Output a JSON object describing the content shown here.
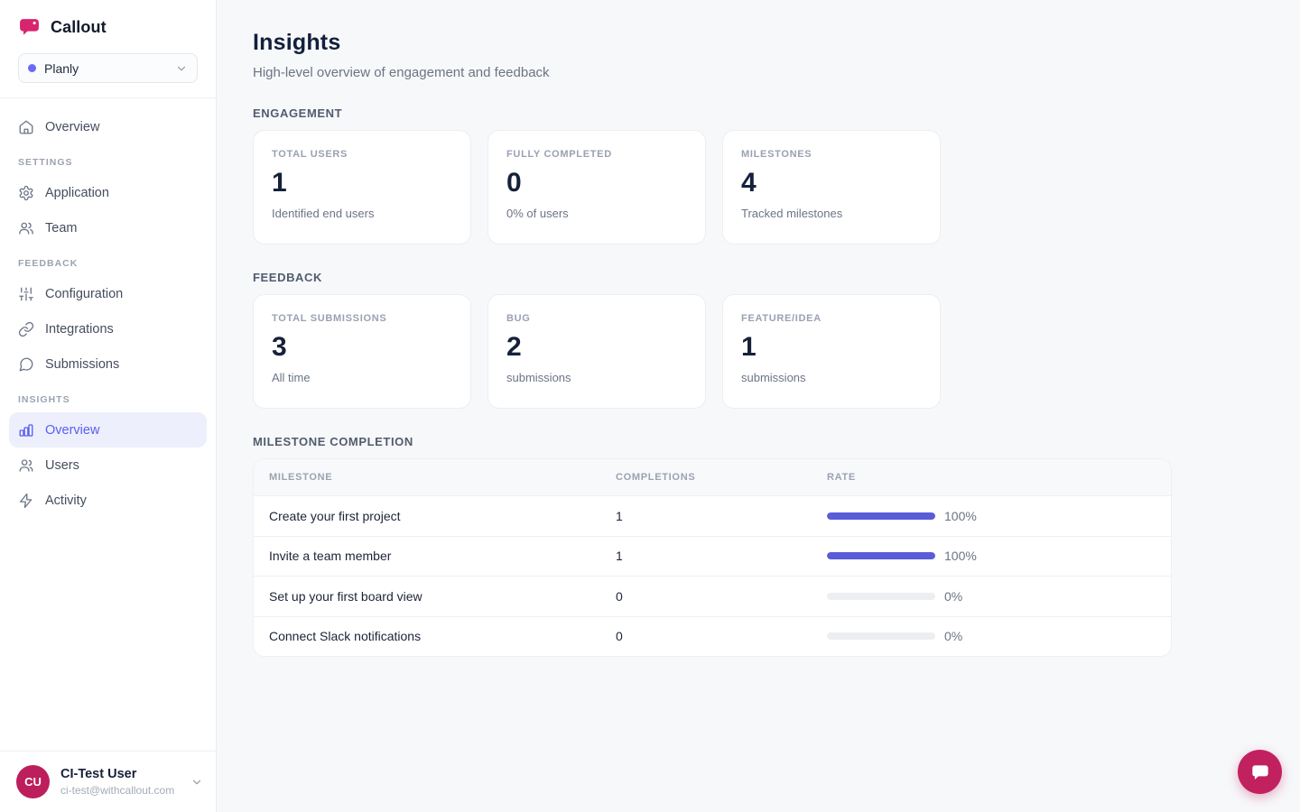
{
  "brand": {
    "name": "Callout",
    "logo_color": "#d6246e",
    "accent_color": "#6366f1",
    "crimson_color": "#bd1e5c"
  },
  "sidebar": {
    "project_selector": {
      "name": "Planly"
    },
    "groups": [
      {
        "heading": "",
        "items": [
          {
            "label": "Overview",
            "icon": "home-icon",
            "active": false
          }
        ]
      },
      {
        "heading": "SETTINGS",
        "items": [
          {
            "label": "Application",
            "icon": "gear-icon",
            "active": false
          },
          {
            "label": "Team",
            "icon": "team-icon",
            "active": false
          }
        ]
      },
      {
        "heading": "FEEDBACK",
        "items": [
          {
            "label": "Configuration",
            "icon": "sliders-icon",
            "active": false
          },
          {
            "label": "Integrations",
            "icon": "link-icon",
            "active": false
          },
          {
            "label": "Submissions",
            "icon": "speech-bubble-icon",
            "active": false
          }
        ]
      },
      {
        "heading": "INSIGHTS",
        "items": [
          {
            "label": "Overview",
            "icon": "bar-chart-icon",
            "active": true
          },
          {
            "label": "Users",
            "icon": "users-icon",
            "active": false
          },
          {
            "label": "Activity",
            "icon": "lightning-icon",
            "active": false
          }
        ]
      }
    ],
    "user": {
      "initials": "CU",
      "name": "CI-Test User",
      "email": "ci-test@withcallout.com"
    }
  },
  "page": {
    "title": "Insights",
    "subtitle": "High-level overview of engagement and feedback"
  },
  "engagement": {
    "heading": "ENGAGEMENT",
    "cards": [
      {
        "label": "TOTAL USERS",
        "value": "1",
        "sublabel": "Identified end users"
      },
      {
        "label": "FULLY COMPLETED",
        "value": "0",
        "sublabel": "0% of users"
      },
      {
        "label": "MILESTONES",
        "value": "4",
        "sublabel": "Tracked milestones"
      }
    ]
  },
  "feedback": {
    "heading": "FEEDBACK",
    "cards": [
      {
        "label": "TOTAL SUBMISSIONS",
        "value": "3",
        "sublabel": "All time"
      },
      {
        "label": "BUG",
        "value": "2",
        "sublabel": "submissions"
      },
      {
        "label": "FEATURE/IDEA",
        "value": "1",
        "sublabel": "submissions"
      }
    ]
  },
  "milestones": {
    "heading": "MILESTONE COMPLETION",
    "columns": [
      "MILESTONE",
      "COMPLETIONS",
      "RATE"
    ],
    "rows": [
      {
        "milestone": "Create your first project",
        "completions": "1",
        "rate_percent": 100,
        "rate_label": "100%"
      },
      {
        "milestone": "Invite a team member",
        "completions": "1",
        "rate_percent": 100,
        "rate_label": "100%"
      },
      {
        "milestone": "Set up your first board view",
        "completions": "0",
        "rate_percent": 0,
        "rate_label": "0%"
      },
      {
        "milestone": "Connect Slack notifications",
        "completions": "0",
        "rate_percent": 0,
        "rate_label": "0%"
      }
    ]
  }
}
